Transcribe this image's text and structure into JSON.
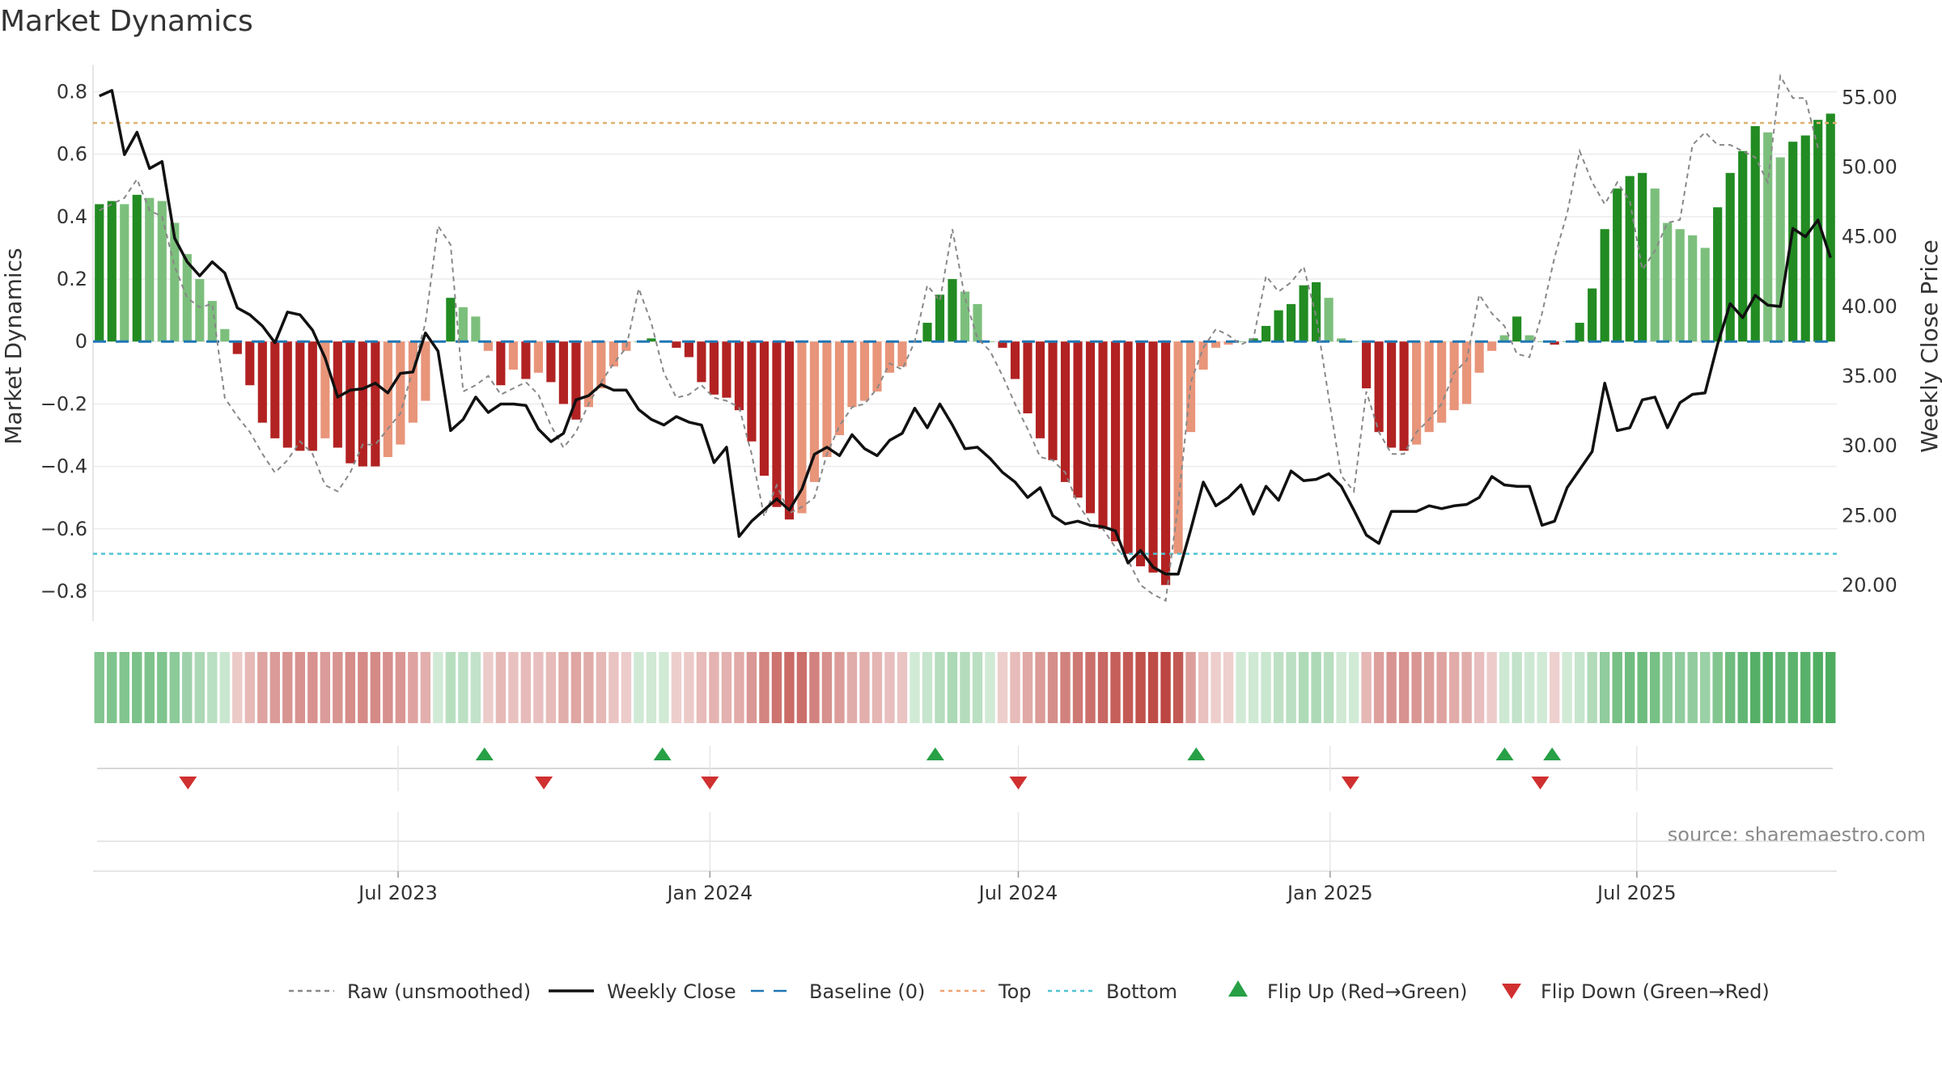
{
  "chart_data": {
    "type": "bar",
    "title": "Market Dynamics",
    "ylabel": "Market Dynamics",
    "y2label": "Weekly Close Price",
    "ylim": [
      -0.87,
      0.84
    ],
    "y2lim": [
      18.0,
      56.3
    ],
    "yticks": [
      "0.8",
      "0.6",
      "0.4",
      "0.2",
      "0",
      "−0.2",
      "−0.4",
      "−0.6",
      "−0.8"
    ],
    "yticks_values": [
      0.8,
      0.6,
      0.4,
      0.2,
      0,
      -0.2,
      -0.4,
      -0.6,
      -0.8
    ],
    "y2ticks": [
      "55.00",
      "50.00",
      "45.00",
      "40.00",
      "35.00",
      "30.00",
      "25.00",
      "20.00"
    ],
    "y2ticks_values": [
      55,
      50,
      45,
      40,
      35,
      30,
      25,
      20
    ],
    "x_start": "2023-01-02",
    "x_end": "2025-10-27",
    "xticks": [
      {
        "date": "2023-07-01",
        "label": "Jul 2023"
      },
      {
        "date": "2024-01-01",
        "label": "Jan 2024"
      },
      {
        "date": "2024-07-01",
        "label": "Jul 2024"
      },
      {
        "date": "2025-01-01",
        "label": "Jan 2025"
      },
      {
        "date": "2025-07-01",
        "label": "Jul 2025"
      }
    ],
    "grid": true,
    "top_line": 0.7,
    "bottom_line": -0.68,
    "baseline": 0,
    "series": [
      {
        "name": "Market Dynamics (smoothed)",
        "type": "bar",
        "values": [
          0.44,
          0.45,
          0.44,
          0.47,
          0.46,
          0.45,
          0.38,
          0.28,
          0.2,
          0.13,
          0.04,
          -0.04,
          -0.14,
          -0.26,
          -0.31,
          -0.34,
          -0.35,
          -0.35,
          -0.31,
          -0.34,
          -0.39,
          -0.4,
          -0.4,
          -0.37,
          -0.33,
          -0.26,
          -0.19,
          0.0,
          0.14,
          0.11,
          0.08,
          -0.03,
          -0.14,
          -0.09,
          -0.12,
          -0.1,
          -0.13,
          -0.2,
          -0.25,
          -0.21,
          -0.15,
          -0.08,
          -0.03,
          0.0,
          0.01,
          0.0,
          -0.02,
          -0.05,
          -0.13,
          -0.17,
          -0.18,
          -0.22,
          -0.32,
          -0.43,
          -0.53,
          -0.57,
          -0.55,
          -0.45,
          -0.37,
          -0.3,
          -0.21,
          -0.19,
          -0.16,
          -0.1,
          -0.08,
          0.0,
          0.06,
          0.15,
          0.2,
          0.16,
          0.12,
          0.0,
          -0.02,
          -0.12,
          -0.23,
          -0.31,
          -0.38,
          -0.45,
          -0.5,
          -0.55,
          -0.6,
          -0.64,
          -0.68,
          -0.72,
          -0.74,
          -0.78,
          -0.68,
          -0.29,
          -0.09,
          -0.02,
          -0.01,
          0.0,
          0.01,
          0.05,
          0.1,
          0.12,
          0.18,
          0.19,
          0.14,
          0.01,
          0.0,
          -0.15,
          -0.29,
          -0.34,
          -0.35,
          -0.33,
          -0.29,
          -0.26,
          -0.22,
          -0.2,
          -0.1,
          -0.03,
          0.02,
          0.08,
          0.02,
          0.0,
          -0.01,
          0.0,
          0.06,
          0.17,
          0.36,
          0.49,
          0.53,
          0.54,
          0.49,
          0.38,
          0.36,
          0.34,
          0.3,
          0.43,
          0.54,
          0.61,
          0.69,
          0.67,
          0.59,
          0.64,
          0.66,
          0.71,
          0.73
        ]
      },
      {
        "name": "Raw (unsmoothed)",
        "type": "line",
        "values": [
          0.42,
          0.44,
          0.46,
          0.52,
          0.42,
          0.4,
          0.24,
          0.14,
          0.11,
          0.12,
          -0.18,
          -0.24,
          -0.29,
          -0.36,
          -0.42,
          -0.38,
          -0.32,
          -0.36,
          -0.46,
          -0.48,
          -0.42,
          -0.33,
          -0.33,
          -0.28,
          -0.23,
          -0.09,
          0.06,
          0.37,
          0.31,
          -0.16,
          -0.14,
          -0.11,
          -0.17,
          -0.15,
          -0.13,
          -0.17,
          -0.27,
          -0.34,
          -0.29,
          -0.2,
          -0.13,
          -0.07,
          -0.02,
          0.17,
          0.06,
          -0.1,
          -0.18,
          -0.17,
          -0.14,
          -0.18,
          -0.19,
          -0.21,
          -0.36,
          -0.56,
          -0.46,
          -0.55,
          -0.53,
          -0.5,
          -0.36,
          -0.27,
          -0.21,
          -0.2,
          -0.15,
          -0.07,
          -0.09,
          0.0,
          0.18,
          0.13,
          0.36,
          0.14,
          0.01,
          -0.03,
          -0.11,
          -0.2,
          -0.28,
          -0.37,
          -0.38,
          -0.42,
          -0.52,
          -0.58,
          -0.6,
          -0.66,
          -0.7,
          -0.78,
          -0.81,
          -0.83,
          -0.52,
          -0.13,
          -0.02,
          0.04,
          0.02,
          -0.01,
          0.01,
          0.21,
          0.16,
          0.19,
          0.24,
          0.08,
          -0.18,
          -0.43,
          -0.48,
          -0.16,
          -0.29,
          -0.36,
          -0.36,
          -0.29,
          -0.25,
          -0.2,
          -0.1,
          -0.06,
          0.15,
          0.09,
          0.05,
          -0.04,
          -0.05,
          0.09,
          0.27,
          0.41,
          0.61,
          0.51,
          0.44,
          0.51,
          0.45,
          0.23,
          0.29,
          0.38,
          0.39,
          0.63,
          0.67,
          0.63,
          0.63,
          0.61,
          0.59,
          0.51,
          0.85,
          0.78,
          0.78,
          0.62
        ]
      },
      {
        "name": "Weekly Close",
        "type": "line",
        "axis": "right",
        "values": [
          55.1,
          55.5,
          50.9,
          52.5,
          49.9,
          50.4,
          44.9,
          43.2,
          42.2,
          43.2,
          42.4,
          39.9,
          39.4,
          38.6,
          37.4,
          39.6,
          39.4,
          38.3,
          36.3,
          33.5,
          34.0,
          34.1,
          34.5,
          33.8,
          35.2,
          35.3,
          38.1,
          36.8,
          31.1,
          31.9,
          33.5,
          32.4,
          33.0,
          33.0,
          32.9,
          31.2,
          30.3,
          30.9,
          33.3,
          33.6,
          34.4,
          34.0,
          34.0,
          32.6,
          31.9,
          31.5,
          32.1,
          31.7,
          31.5,
          28.8,
          29.9,
          23.5,
          24.6,
          25.4,
          26.2,
          25.4,
          26.9,
          29.4,
          29.9,
          29.3,
          30.8,
          29.8,
          29.3,
          30.4,
          30.9,
          32.7,
          31.3,
          33.0,
          31.5,
          29.8,
          29.9,
          29.1,
          28.1,
          27.4,
          26.3,
          27.0,
          25.0,
          24.4,
          24.6,
          24.3,
          24.2,
          23.9,
          21.6,
          22.5,
          21.3,
          20.8,
          20.8,
          24.0,
          27.4,
          25.7,
          26.3,
          27.2,
          25.1,
          27.1,
          26.1,
          28.2,
          27.5,
          27.6,
          28.0,
          27.1,
          25.4,
          23.6,
          23.0,
          25.3,
          25.3,
          25.3,
          25.7,
          25.5,
          25.7,
          25.8,
          26.3,
          27.8,
          27.2,
          27.1,
          27.1,
          24.3,
          24.6,
          27.0,
          28.3,
          29.6,
          34.5,
          31.1,
          31.3,
          33.3,
          33.5,
          31.3,
          33.1,
          33.7,
          33.8,
          37.3,
          40.2,
          39.2,
          40.8,
          40.1,
          40.0,
          45.6,
          45.0,
          46.2,
          43.5
        ]
      }
    ],
    "regime_strip": {
      "label": "regime"
    },
    "flips": {
      "up": [
        "2023-08-21",
        "2023-12-04",
        "2024-05-13",
        "2024-10-14",
        "2025-04-14",
        "2025-05-12"
      ],
      "down": [
        "2023-02-27",
        "2023-09-25",
        "2024-01-01",
        "2024-07-01",
        "2025-01-13",
        "2025-05-05"
      ]
    },
    "legend": [
      {
        "label": "Raw (unsmoothed)",
        "kind": "dashed-line",
        "color": "#888888"
      },
      {
        "label": "Weekly Close",
        "kind": "line",
        "color": "#111111"
      },
      {
        "label": "Baseline (0)",
        "kind": "dashed-line",
        "color": "#1f77b4"
      },
      {
        "label": "Top",
        "kind": "dotted-line",
        "color": "#f0a070"
      },
      {
        "label": "Bottom",
        "kind": "dotted-line",
        "color": "#4fc3d4"
      },
      {
        "label": "Flip Up (Red→Green)",
        "kind": "triangle-up",
        "color": "#27a046"
      },
      {
        "label": "Flip Down (Green→Red)",
        "kind": "triangle-down",
        "color": "#d03030"
      }
    ],
    "legend_position": "bottom-center",
    "colors": {
      "strong_green": "#228b22",
      "weak_green": "#7cbf7c",
      "strong_red": "#b22222",
      "weak_red": "#e8957a",
      "top_line": "#e0b070",
      "bottom_line": "#4fc3d4",
      "baseline": "#1f77b4",
      "close": "#111111",
      "raw": "#888888",
      "flip_up": "#27a046",
      "flip_down": "#d03030"
    }
  },
  "source": "source: sharemaestro.com"
}
